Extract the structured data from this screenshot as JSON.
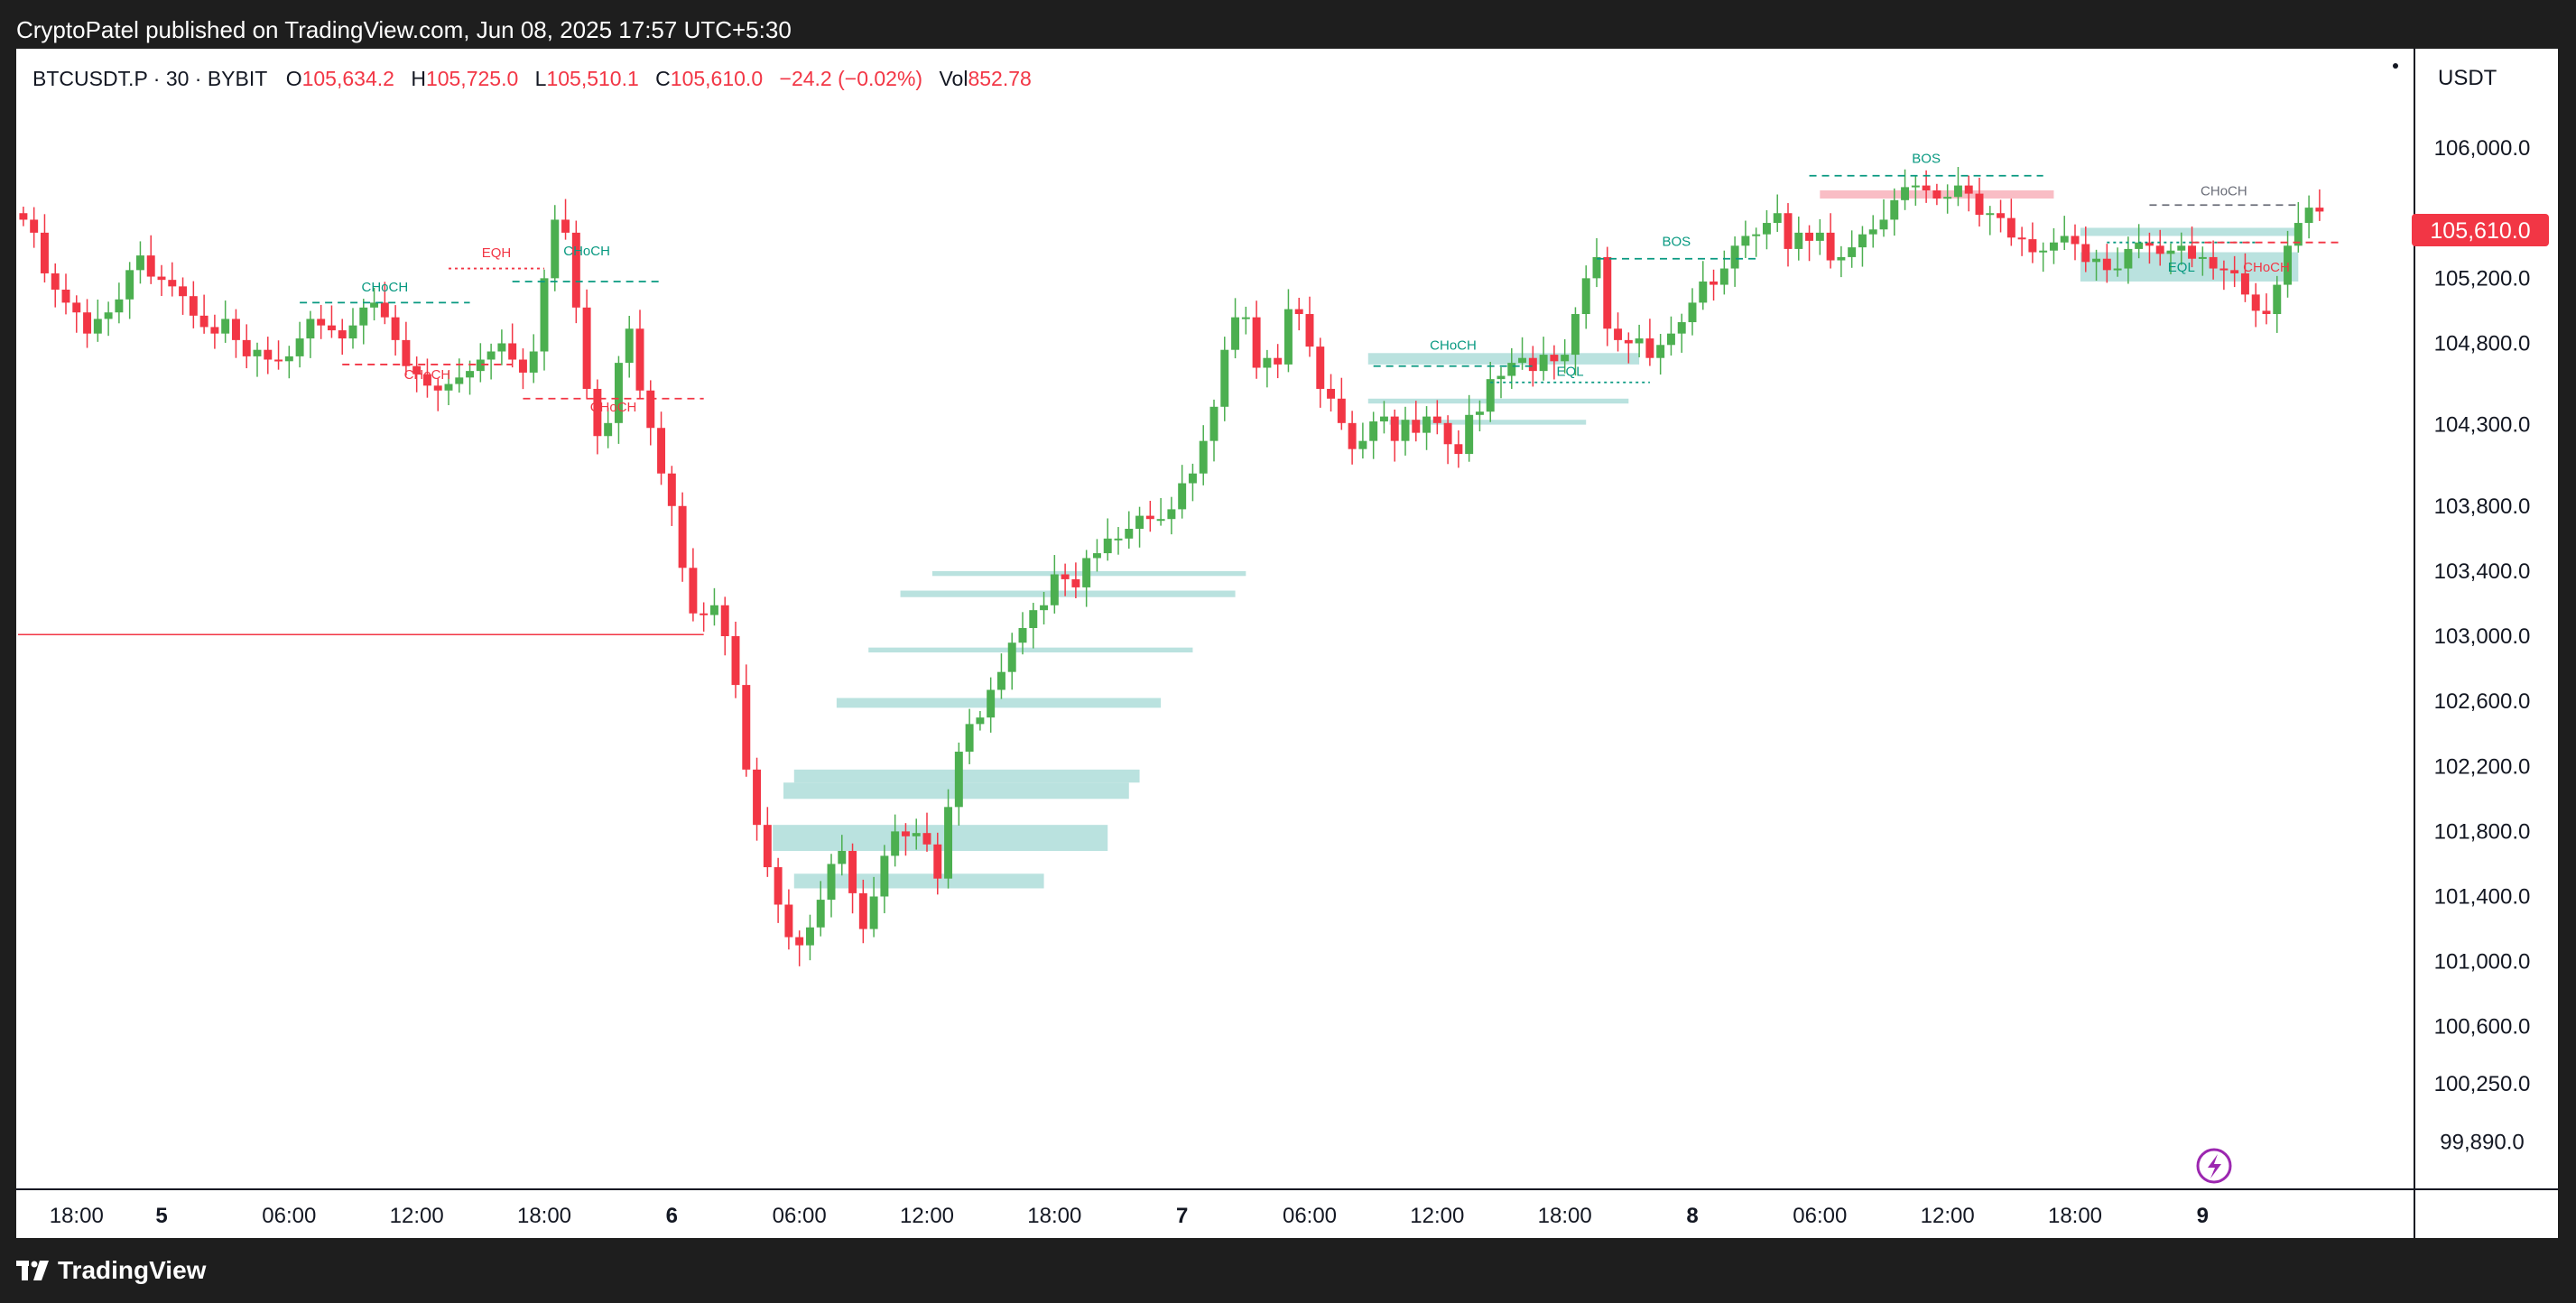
{
  "header": {
    "publisher": "CryptoPatel published on TradingView.com, Jun 08, 2025 17:57 UTC+5:30"
  },
  "legend": {
    "symbol": "BTCUSDT.P · 30 · BYBIT",
    "open_label": "O",
    "open": "105,634.2",
    "high_label": "H",
    "high": "105,725.0",
    "low_label": "L",
    "low": "105,510.1",
    "close_label": "C",
    "close": "105,610.0",
    "change": "−24.2 (−0.02%)",
    "vol_label": "Vol",
    "vol": "852.78"
  },
  "price_axis": {
    "currency": "USDT",
    "last_price": "105,610.0"
  },
  "footer": {
    "brand": "TradingView"
  },
  "colors": {
    "up": "#4caf50",
    "down": "#f23645",
    "zone": "#b2dfdb",
    "accent": "#089981"
  },
  "chart_data": {
    "type": "candlestick",
    "symbol": "BTCUSDT.P",
    "timeframe": "30",
    "exchange": "BYBIT",
    "ylim": [
      99700,
      106400
    ],
    "y_ticks": [
      {
        "value": 106000,
        "label": "106,000.0"
      },
      {
        "value": 105200,
        "label": "105,200.0"
      },
      {
        "value": 104800,
        "label": "104,800.0"
      },
      {
        "value": 104300,
        "label": "104,300.0"
      },
      {
        "value": 103800,
        "label": "103,800.0"
      },
      {
        "value": 103400,
        "label": "103,400.0"
      },
      {
        "value": 103000,
        "label": "103,000.0"
      },
      {
        "value": 102600,
        "label": "102,600.0"
      },
      {
        "value": 102200,
        "label": "102,200.0"
      },
      {
        "value": 101800,
        "label": "101,800.0"
      },
      {
        "value": 101400,
        "label": "101,400.0"
      },
      {
        "value": 101000,
        "label": "101,000.0"
      },
      {
        "value": 100600,
        "label": "100,600.0"
      },
      {
        "value": 100250,
        "label": "100,250.0"
      },
      {
        "value": 99890,
        "label": "99,890.0"
      }
    ],
    "x_ticks": [
      {
        "index": 5,
        "label": "18:00"
      },
      {
        "index": 13,
        "label": "5"
      },
      {
        "index": 25,
        "label": "06:00"
      },
      {
        "index": 37,
        "label": "12:00"
      },
      {
        "index": 49,
        "label": "18:00"
      },
      {
        "index": 61,
        "label": "6"
      },
      {
        "index": 73,
        "label": "06:00"
      },
      {
        "index": 85,
        "label": "12:00"
      },
      {
        "index": 97,
        "label": "18:00"
      },
      {
        "index": 109,
        "label": "7"
      },
      {
        "index": 121,
        "label": "06:00"
      },
      {
        "index": 133,
        "label": "12:00"
      },
      {
        "index": 145,
        "label": "18:00"
      },
      {
        "index": 157,
        "label": "8"
      },
      {
        "index": 169,
        "label": "06:00"
      },
      {
        "index": 181,
        "label": "12:00"
      },
      {
        "index": 193,
        "label": "18:00"
      },
      {
        "index": 205,
        "label": "9"
      }
    ],
    "closes": [
      105560,
      105480,
      105230,
      105130,
      105050,
      104990,
      104860,
      104950,
      104990,
      105070,
      105250,
      105340,
      105210,
      105190,
      105150,
      105090,
      104970,
      104900,
      104860,
      104950,
      104820,
      104720,
      104760,
      104700,
      104690,
      104720,
      104830,
      104950,
      104910,
      104880,
      104830,
      104910,
      105020,
      105050,
      104960,
      104820,
      104660,
      104610,
      104540,
      104510,
      104550,
      104590,
      104630,
      104700,
      104750,
      104800,
      104700,
      104620,
      104750,
      105200,
      105560,
      105480,
      105020,
      104520,
      104230,
      104310,
      104680,
      104890,
      104510,
      104280,
      104000,
      103800,
      103420,
      103140,
      103130,
      103190,
      103000,
      102700,
      102180,
      101840,
      101580,
      101350,
      101150,
      101100,
      101210,
      101380,
      101600,
      101680,
      101420,
      101200,
      101400,
      101650,
      101800,
      101770,
      101790,
      101720,
      101510,
      101950,
      102290,
      102460,
      102500,
      102670,
      102780,
      102960,
      103050,
      103160,
      103190,
      103380,
      103350,
      103300,
      103480,
      103510,
      103600,
      103600,
      103660,
      103740,
      103720,
      103720,
      103780,
      103940,
      104000,
      104200,
      104410,
      104760,
      104960,
      104960,
      104650,
      104710,
      104670,
      105010,
      104980,
      104780,
      104520,
      104460,
      104310,
      104150,
      104200,
      104320,
      104350,
      104200,
      104330,
      104250,
      104350,
      104310,
      104180,
      104120,
      104360,
      104380,
      104580,
      104600,
      104680,
      104710,
      104630,
      104730,
      104690,
      104730,
      104980,
      105200,
      105330,
      104890,
      104820,
      104800,
      104830,
      104710,
      104790,
      104860,
      104930,
      105050,
      105180,
      105160,
      105260,
      105400,
      105460,
      105470,
      105540,
      105600,
      105380,
      105480,
      105430,
      105480,
      105310,
      105330,
      105390,
      105470,
      105500,
      105560,
      105680,
      105760,
      105770,
      105740,
      105690,
      105700,
      105770,
      105720,
      105590,
      105600,
      105570,
      105450,
      105440,
      105360,
      105370,
      105420,
      105460,
      105410,
      105300,
      105320,
      105250,
      105260,
      105380,
      105420,
      105400,
      105350,
      105370,
      105400,
      105320,
      105330,
      105260,
      105250,
      105230,
      105100,
      105000,
      104980,
      105160,
      105400,
      105540,
      105634,
      105610
    ],
    "annotations": [
      {
        "label": "EQH",
        "type": "eqh"
      },
      {
        "label": "CHoCH",
        "type": "bullish"
      },
      {
        "label": "CHoCH",
        "type": "bullish"
      },
      {
        "label": "CHoCH",
        "type": "bearish"
      },
      {
        "label": "CHoCH",
        "type": "bearish"
      },
      {
        "label": "CHoCH",
        "type": "bullish"
      },
      {
        "label": "EQL",
        "type": "eql"
      },
      {
        "label": "BOS",
        "type": "bullish"
      },
      {
        "label": "BOS",
        "type": "bullish"
      },
      {
        "label": "CHoCH",
        "type": "neutral"
      },
      {
        "label": "EQL",
        "type": "eql"
      },
      {
        "label": "CHoCH",
        "type": "bearish"
      }
    ]
  }
}
